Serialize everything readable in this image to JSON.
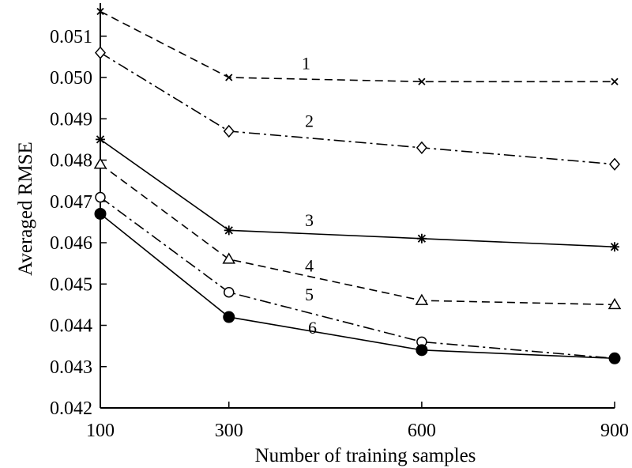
{
  "chart_data": {
    "type": "line",
    "x": [
      100,
      300,
      600,
      900
    ],
    "xlabel": "Number of training samples",
    "ylabel": "Averaged RMSE",
    "ylim": [
      0.042,
      0.0518
    ],
    "x_ticks": [
      "100",
      "300",
      "600",
      "900"
    ],
    "y_ticks": [
      "0.042",
      "0.043",
      "0.044",
      "0.045",
      "0.046",
      "0.047",
      "0.048",
      "0.049",
      "0.050",
      "0.051"
    ],
    "grid": false,
    "legend": "none",
    "series": [
      {
        "label": "1",
        "values": [
          0.0516,
          0.05,
          0.0499,
          0.0499
        ],
        "marker": "x",
        "dash": "dashed",
        "label_at": [
          0.0501,
          0.0502
        ]
      },
      {
        "label": "2",
        "values": [
          0.0506,
          0.0487,
          0.0483,
          0.0479
        ],
        "marker": "diamond",
        "dash": "dashdot",
        "label_at": [
          0.0501,
          0.0488
        ]
      },
      {
        "label": "3",
        "values": [
          0.0485,
          0.0463,
          0.0461,
          0.0459
        ],
        "marker": "star",
        "dash": "solid",
        "label_at": [
          0.0501,
          0.0464
        ]
      },
      {
        "label": "4",
        "values": [
          0.0479,
          0.0456,
          0.0446,
          0.0445
        ],
        "marker": "triangle",
        "dash": "dashed",
        "label_at": [
          0.0501,
          0.0453
        ]
      },
      {
        "label": "5",
        "values": [
          0.0471,
          0.0448,
          0.0436,
          0.0432
        ],
        "marker": "circle-open",
        "dash": "dashdot",
        "label_at": [
          0.0501,
          0.0446
        ]
      },
      {
        "label": "6",
        "values": [
          0.0467,
          0.0442,
          0.0434,
          0.0432
        ],
        "marker": "circle-filled",
        "dash": "solid",
        "label_at": [
          0.0503,
          0.0438
        ]
      }
    ]
  }
}
